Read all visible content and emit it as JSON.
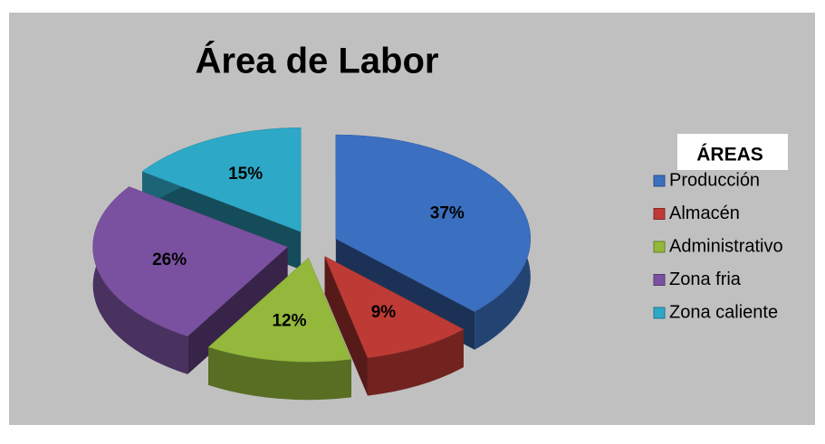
{
  "chart_data": {
    "type": "pie",
    "title": "Área de Labor",
    "legend_title": "ÁREAS",
    "categories": [
      "Producción",
      "Almacén",
      "Administrativo",
      "Zona fria",
      "Zona caliente"
    ],
    "values": [
      37,
      9,
      12,
      26,
      15
    ],
    "value_labels": [
      "37%",
      "9%",
      "12%",
      "26%",
      "15%"
    ],
    "colors": [
      "#3b6fc0",
      "#be3b35",
      "#93b83b",
      "#7a51a0",
      "#2ea8c7"
    ],
    "legend": "right"
  }
}
